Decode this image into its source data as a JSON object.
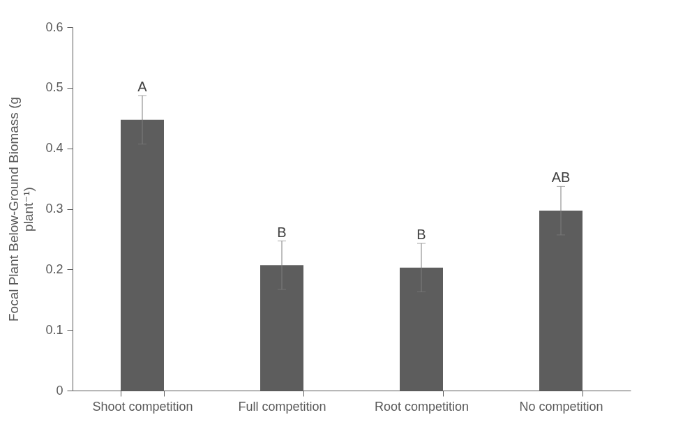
{
  "chart_data": {
    "type": "bar",
    "ylabel": "Focal Plant Below-Ground Biomass (g plant⁻¹)",
    "categories": [
      "Shoot competition",
      "Full competition",
      "Root competition",
      "No competition"
    ],
    "values": [
      0.447,
      0.207,
      0.203,
      0.297
    ],
    "color": "#5d5d5d",
    "errors": [
      0.04,
      0.04,
      0.04,
      0.04
    ],
    "ylim": [
      0,
      0.6
    ],
    "yticks": [
      0,
      0.1,
      0.2,
      0.3,
      0.4,
      0.5,
      0.6
    ],
    "grid": false,
    "annotations": [
      {
        "text": "A",
        "x": "Shoot competition",
        "y": 0.487
      },
      {
        "text": "B",
        "x": "Full competition",
        "y": 0.247
      },
      {
        "text": "B",
        "x": "Root competition",
        "y": 0.243
      },
      {
        "text": "AB",
        "x": "No competition",
        "y": 0.337
      }
    ]
  }
}
